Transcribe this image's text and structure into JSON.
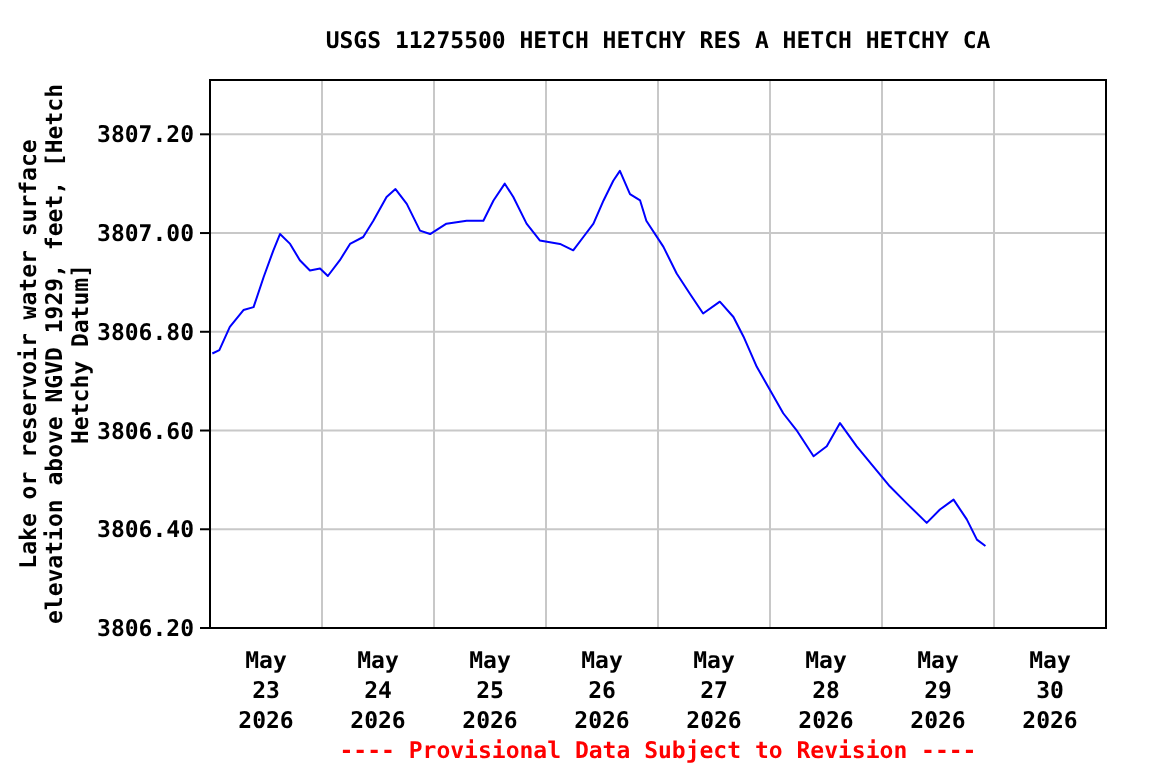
{
  "chart_data": {
    "type": "line",
    "title": "USGS 11275500 HETCH HETCHY RES A HETCH HETCHY CA",
    "ylabel": "Lake or reservoir water surface elevation above NGVD 1929, feet, [Hetch Hetchy Datum]",
    "annotations": [
      "---- Provisional Data Subject to Revision ----"
    ],
    "x": [
      "2026-05-23T00:30",
      "2026-05-23T02:00",
      "2026-05-23T04:15",
      "2026-05-23T07:10",
      "2026-05-23T09:20",
      "2026-05-23T11:30",
      "2026-05-23T13:35",
      "2026-05-23T15:00",
      "2026-05-23T17:10",
      "2026-05-23T19:15",
      "2026-05-23T21:25",
      "2026-05-23T23:35",
      "2026-05-24T01:15",
      "2026-05-24T03:50",
      "2026-05-24T06:00",
      "2026-05-24T08:50",
      "2026-05-24T11:00",
      "2026-05-24T13:50",
      "2026-05-24T15:45",
      "2026-05-24T18:10",
      "2026-05-24T21:00",
      "2026-05-24T23:10",
      "2026-05-25T02:40",
      "2026-05-25T07:00",
      "2026-05-25T10:35",
      "2026-05-25T12:45",
      "2026-05-25T15:10",
      "2026-05-25T17:00",
      "2026-05-25T19:50",
      "2026-05-25T22:40",
      "2026-05-26T03:00",
      "2026-05-26T05:50",
      "2026-05-26T08:00",
      "2026-05-26T10:10",
      "2026-05-26T12:20",
      "2026-05-26T14:25",
      "2026-05-26T15:50",
      "2026-05-26T18:00",
      "2026-05-26T20:10",
      "2026-05-26T21:30",
      "2026-05-27T01:10",
      "2026-05-27T04:00",
      "2026-05-27T06:50",
      "2026-05-27T09:40",
      "2026-05-27T13:15",
      "2026-05-27T16:10",
      "2026-05-27T18:20",
      "2026-05-27T21:10",
      "2026-05-28T00:00",
      "2026-05-28T02:50",
      "2026-05-28T05:40",
      "2026-05-28T09:20",
      "2026-05-28T12:10",
      "2026-05-28T15:00",
      "2026-05-28T18:35",
      "2026-05-28T22:10",
      "2026-05-29T01:40",
      "2026-05-29T05:15",
      "2026-05-29T09:35",
      "2026-05-29T12:25",
      "2026-05-29T15:20",
      "2026-05-29T18:10",
      "2026-05-29T20:20",
      "2026-05-29T22:10"
    ],
    "series": [
      {
        "color": "#0000ff",
        "values": [
          3806.756,
          3806.763,
          3806.81,
          3806.844,
          3806.85,
          3806.911,
          3806.965,
          3806.998,
          3806.978,
          3806.945,
          3806.924,
          3806.928,
          3806.913,
          3806.945,
          3806.978,
          3806.992,
          3807.025,
          3807.073,
          3807.089,
          3807.059,
          3807.005,
          3806.998,
          3807.019,
          3807.025,
          3807.025,
          3807.066,
          3807.1,
          3807.073,
          3807.019,
          3806.985,
          3806.978,
          3806.965,
          3806.992,
          3807.019,
          3807.066,
          3807.106,
          3807.126,
          3807.079,
          3807.066,
          3807.025,
          3806.972,
          3806.918,
          3806.877,
          3806.837,
          3806.861,
          3806.83,
          3806.79,
          3806.729,
          3806.682,
          3806.635,
          3806.601,
          3806.548,
          3806.568,
          3806.615,
          3806.568,
          3806.527,
          3806.487,
          3806.453,
          3806.413,
          3806.44,
          3806.46,
          3806.42,
          3806.379,
          3806.366
        ]
      }
    ],
    "xlim": [
      "2026-05-23",
      "2026-05-31"
    ],
    "xticks": [
      {
        "value": "2026-05-23T12:00",
        "label": "May\n23\n2026"
      },
      {
        "value": "2026-05-24",
        "label": null
      },
      {
        "value": "2026-05-24T12:00",
        "label": "May\n24\n2026"
      },
      {
        "value": "2026-05-25",
        "label": null
      },
      {
        "value": "2026-05-25T12:00",
        "label": "May\n25\n2026"
      },
      {
        "value": "2026-05-26",
        "label": null
      },
      {
        "value": "2026-05-26T12:00",
        "label": "May\n26\n2026"
      },
      {
        "value": "2026-05-27",
        "label": null
      },
      {
        "value": "2026-05-27T12:00",
        "label": "May\n27\n2026"
      },
      {
        "value": "2026-05-28",
        "label": null
      },
      {
        "value": "2026-05-28T12:00",
        "label": "May\n28\n2026"
      },
      {
        "value": "2026-05-29",
        "label": null
      },
      {
        "value": "2026-05-29T12:00",
        "label": "May\n29\n2026"
      },
      {
        "value": "2026-05-30",
        "label": null
      },
      {
        "value": "2026-05-30T12:00",
        "label": "May\n30\n2026"
      }
    ],
    "ylim": [
      3806.2,
      3807.31
    ],
    "yticks": [
      {
        "value": 3806.2,
        "label": "3806.20"
      },
      {
        "value": 3806.4,
        "label": "3806.40"
      },
      {
        "value": 3806.6,
        "label": "3806.60"
      },
      {
        "value": 3806.8,
        "label": "3806.80"
      },
      {
        "value": 3807.0,
        "label": "3807.00"
      },
      {
        "value": 3807.2,
        "label": "3807.20"
      }
    ],
    "grid": true,
    "marker": "none",
    "line_style": "solid"
  }
}
